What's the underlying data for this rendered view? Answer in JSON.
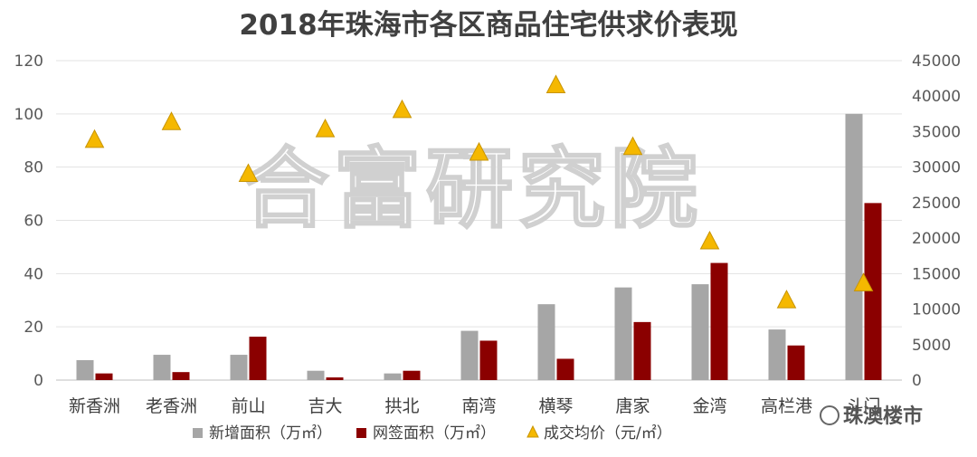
{
  "chart_data": {
    "type": "bar",
    "title": "2018年珠海市各区商品住宅供求价表现",
    "categories": [
      "新香洲",
      "老香洲",
      "前山",
      "吉大",
      "拱北",
      "南湾",
      "横琴",
      "唐家",
      "金湾",
      "高栏港",
      "斗门"
    ],
    "series": [
      {
        "name": "新增面积（万㎡）",
        "type": "bar",
        "axis": "left",
        "color": "#a6a6a6",
        "values": [
          7.5,
          9.5,
          9.5,
          3.5,
          2.5,
          18.5,
          28.5,
          34.8,
          36,
          19,
          100
        ]
      },
      {
        "name": "网签面积（万㎡）",
        "type": "bar",
        "axis": "left",
        "color": "#8b0000",
        "values": [
          2.5,
          3,
          16.3,
          1,
          3.5,
          14.8,
          8,
          21.8,
          44,
          13,
          66.5
        ]
      },
      {
        "name": "成交均价（元/㎡）",
        "type": "scatter",
        "marker": "triangle",
        "axis": "right",
        "color": "#f5b800",
        "values": [
          33800,
          36300,
          29000,
          35300,
          38000,
          32000,
          41500,
          32800,
          19500,
          11200,
          13600
        ]
      }
    ],
    "yleft_ticks": [
      "0",
      "20",
      "40",
      "60",
      "80",
      "100",
      "120"
    ],
    "yleft_lim": [
      0,
      120
    ],
    "yright_ticks": [
      "0",
      "5000",
      "10000",
      "15000",
      "20000",
      "25000",
      "30000",
      "35000",
      "40000",
      "45000"
    ],
    "yright_lim": [
      0,
      45000
    ],
    "grid": true,
    "legend_position": "bottom"
  },
  "watermark": {
    "text": "合富研究院",
    "source": "珠澳楼市"
  }
}
